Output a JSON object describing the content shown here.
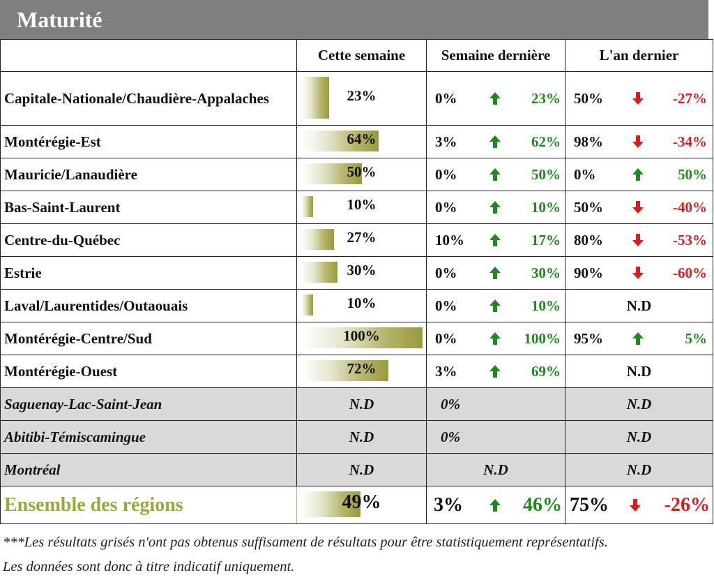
{
  "title": "Maturité",
  "headers": {
    "this_week": "Cette semaine",
    "last_week": "Semaine dernière",
    "last_year": "L'an dernier"
  },
  "rows": [
    {
      "region": "Capitale-Nationale/Chaudière-Appalaches",
      "this_week": "23%",
      "this_week_value": 23,
      "last_week": "0%",
      "last_week_dir": "up",
      "last_week_diff": "23%",
      "last_year": "50%",
      "last_year_dir": "down",
      "last_year_diff": "-27%"
    },
    {
      "region": "Montérégie-Est",
      "this_week": "64%",
      "this_week_value": 64,
      "last_week": "3%",
      "last_week_dir": "up",
      "last_week_diff": "62%",
      "last_year": "98%",
      "last_year_dir": "down",
      "last_year_diff": "-34%"
    },
    {
      "region": "Mauricie/Lanaudière",
      "this_week": "50%",
      "this_week_value": 50,
      "last_week": "0%",
      "last_week_dir": "up",
      "last_week_diff": "50%",
      "last_year": "0%",
      "last_year_dir": "up",
      "last_year_diff": "50%"
    },
    {
      "region": "Bas-Saint-Laurent",
      "this_week": "10%",
      "this_week_value": 10,
      "last_week": "0%",
      "last_week_dir": "up",
      "last_week_diff": "10%",
      "last_year": "50%",
      "last_year_dir": "down",
      "last_year_diff": "-40%"
    },
    {
      "region": "Centre-du-Québec",
      "this_week": "27%",
      "this_week_value": 27,
      "last_week": "10%",
      "last_week_dir": "up",
      "last_week_diff": "17%",
      "last_year": "80%",
      "last_year_dir": "down",
      "last_year_diff": "-53%"
    },
    {
      "region": "Estrie",
      "this_week": "30%",
      "this_week_value": 30,
      "last_week": "0%",
      "last_week_dir": "up",
      "last_week_diff": "30%",
      "last_year": "90%",
      "last_year_dir": "down",
      "last_year_diff": "-60%"
    },
    {
      "region": "Laval/Laurentides/Outaouais",
      "this_week": "10%",
      "this_week_value": 10,
      "last_week": "0%",
      "last_week_dir": "up",
      "last_week_diff": "10%",
      "last_year_nd": "N.D"
    },
    {
      "region": "Montérégie-Centre/Sud",
      "this_week": "100%",
      "this_week_value": 100,
      "last_week": "0%",
      "last_week_dir": "up",
      "last_week_diff": "100%",
      "last_year": "95%",
      "last_year_dir": "up",
      "last_year_diff": "5%"
    },
    {
      "region": "Montérégie-Ouest",
      "this_week": "72%",
      "this_week_value": 72,
      "last_week": "3%",
      "last_week_dir": "up",
      "last_week_diff": "69%",
      "last_year_nd": "N.D"
    }
  ],
  "gray_rows": [
    {
      "region": "Saguenay-Lac-Saint-Jean",
      "this_week": "N.D",
      "last_week": "0%",
      "last_year": "N.D"
    },
    {
      "region": "Abitibi-Témiscamingue",
      "this_week": "N.D",
      "last_week": "0%",
      "last_year": "N.D"
    },
    {
      "region": "Montréal",
      "this_week": "N.D",
      "last_week": "N.D",
      "last_year": "N.D"
    }
  ],
  "total": {
    "region": "Ensemble des régions",
    "this_week": "49%",
    "this_week_value": 49,
    "last_week": "3%",
    "last_week_dir": "up",
    "last_week_diff": "46%",
    "last_year": "75%",
    "last_year_dir": "down",
    "last_year_diff": "-26%"
  },
  "footnote_line1": "***Les résultats grisés n'ont pas obtenus suffisament de résultats pour être statistiquement représentatifs.",
  "footnote_line2": "Les données sont donc à titre indicatif uniquement.",
  "colors": {
    "up": "#1e8a1e",
    "down": "#e01919",
    "title_bg": "#7f7f7f",
    "total_label": "#9da83a",
    "gray_row": "#d9d9d9"
  }
}
